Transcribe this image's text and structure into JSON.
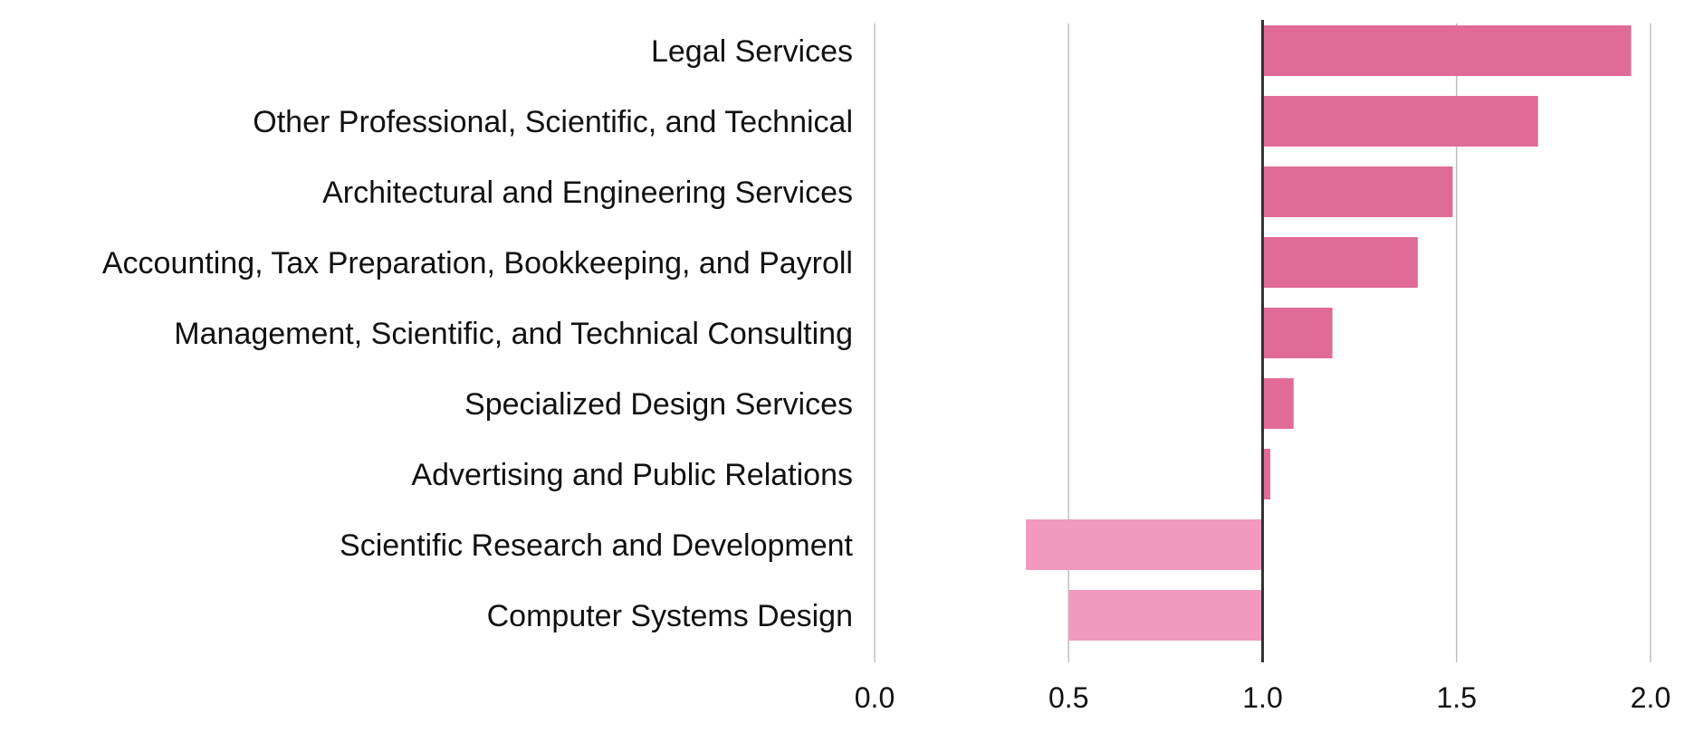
{
  "chart_data": {
    "type": "bar",
    "orientation": "horizontal",
    "title": "",
    "xlabel": "",
    "ylabel": "",
    "baseline": 1.0,
    "xlim": [
      0.0,
      2.0
    ],
    "xticks": [
      "0.0",
      "0.5",
      "1.0",
      "1.5",
      "2.0"
    ],
    "grid": true,
    "categories": [
      "Legal Services",
      "Other Professional, Scientific, and Technical",
      "Architectural and Engineering Services",
      "Accounting, Tax Preparation, Bookkeeping, and Payroll",
      "Management, Scientific, and Technical Consulting",
      "Specialized Design Services",
      "Advertising and Public Relations",
      "Scientific Research and Development",
      "Computer Systems Design"
    ],
    "values": [
      1.95,
      1.71,
      1.49,
      1.4,
      1.18,
      1.08,
      1.02,
      0.39,
      0.5
    ],
    "colors": {
      "above_baseline": "#e06b96",
      "below_baseline": "#f19abd",
      "gridline": "#bfbfbf",
      "baseline": "#333333"
    }
  }
}
